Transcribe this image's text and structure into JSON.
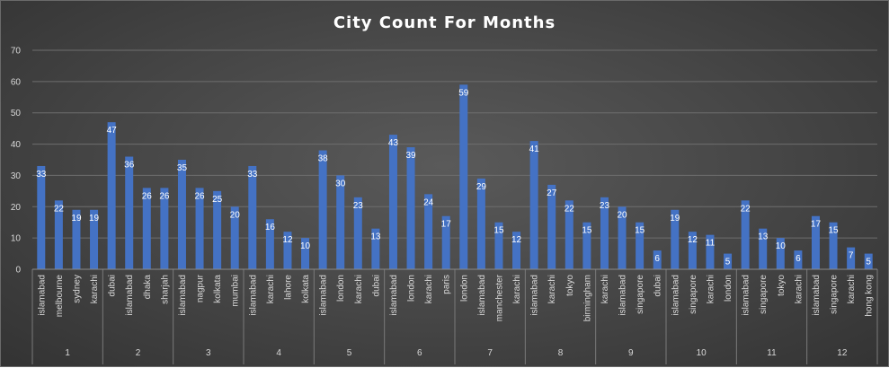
{
  "chart_data": {
    "type": "bar",
    "title": "City Count For Months",
    "xlabel": "",
    "ylabel": "",
    "ylim": [
      0,
      70
    ],
    "yticks": [
      0,
      10,
      20,
      30,
      40,
      50,
      60,
      70
    ],
    "grid": true,
    "legend": "none",
    "bar_color": "#4472c4",
    "groups": [
      {
        "month": "1",
        "bars": [
          {
            "city": "islamabad",
            "value": 33
          },
          {
            "city": "melbourne",
            "value": 22
          },
          {
            "city": "sydney",
            "value": 19
          },
          {
            "city": "karachi",
            "value": 19
          }
        ]
      },
      {
        "month": "2",
        "bars": [
          {
            "city": "dubai",
            "value": 47
          },
          {
            "city": "islamabad",
            "value": 36
          },
          {
            "city": "dhaka",
            "value": 26
          },
          {
            "city": "sharjah",
            "value": 26
          }
        ]
      },
      {
        "month": "3",
        "bars": [
          {
            "city": "islamabad",
            "value": 35
          },
          {
            "city": "nagpur",
            "value": 26
          },
          {
            "city": "kolkata",
            "value": 25
          },
          {
            "city": "mumbai",
            "value": 20
          }
        ]
      },
      {
        "month": "4",
        "bars": [
          {
            "city": "islamabad",
            "value": 33
          },
          {
            "city": "karachi",
            "value": 16
          },
          {
            "city": "lahore",
            "value": 12
          },
          {
            "city": "kolkata",
            "value": 10
          }
        ]
      },
      {
        "month": "5",
        "bars": [
          {
            "city": "islamabad",
            "value": 38
          },
          {
            "city": "london",
            "value": 30
          },
          {
            "city": "karachi",
            "value": 23
          },
          {
            "city": "dubai",
            "value": 13
          }
        ]
      },
      {
        "month": "6",
        "bars": [
          {
            "city": "islamabad",
            "value": 43
          },
          {
            "city": "london",
            "value": 39
          },
          {
            "city": "karachi",
            "value": 24
          },
          {
            "city": "paris",
            "value": 17
          }
        ]
      },
      {
        "month": "7",
        "bars": [
          {
            "city": "london",
            "value": 59
          },
          {
            "city": "islamabad",
            "value": 29
          },
          {
            "city": "manchester",
            "value": 15
          },
          {
            "city": "karachi",
            "value": 12
          }
        ]
      },
      {
        "month": "8",
        "bars": [
          {
            "city": "islamabad",
            "value": 41
          },
          {
            "city": "karachi",
            "value": 27
          },
          {
            "city": "tokyo",
            "value": 22
          },
          {
            "city": "birmingham",
            "value": 15
          }
        ]
      },
      {
        "month": "9",
        "bars": [
          {
            "city": "karachi",
            "value": 23
          },
          {
            "city": "islamabad",
            "value": 20
          },
          {
            "city": "singapore",
            "value": 15
          },
          {
            "city": "dubai",
            "value": 6
          }
        ]
      },
      {
        "month": "10",
        "bars": [
          {
            "city": "islamabad",
            "value": 19
          },
          {
            "city": "singapore",
            "value": 12
          },
          {
            "city": "karachi",
            "value": 11
          },
          {
            "city": "london",
            "value": 5
          }
        ]
      },
      {
        "month": "11",
        "bars": [
          {
            "city": "islamabad",
            "value": 22
          },
          {
            "city": "singapore",
            "value": 13
          },
          {
            "city": "tokyo",
            "value": 10
          },
          {
            "city": "karachi",
            "value": 6
          }
        ]
      },
      {
        "month": "12",
        "bars": [
          {
            "city": "islamabad",
            "value": 17
          },
          {
            "city": "singapore",
            "value": 15
          },
          {
            "city": "karachi",
            "value": 7
          },
          {
            "city": "hong kong",
            "value": 5
          }
        ]
      }
    ]
  }
}
